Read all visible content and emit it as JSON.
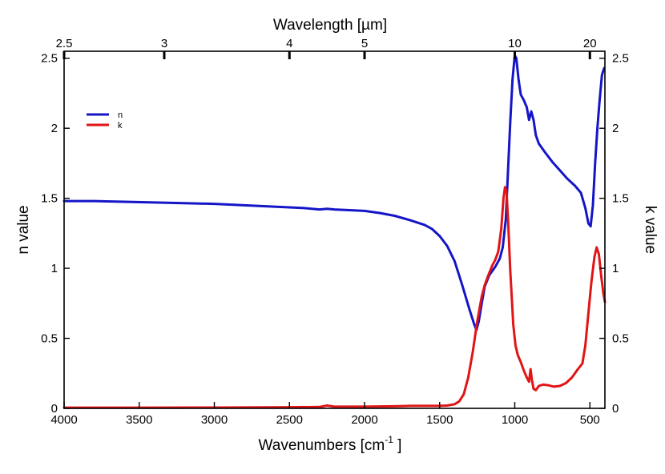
{
  "chart_data": {
    "type": "line",
    "title": "",
    "top_axis": {
      "label": "Wavelength [µm]",
      "ticks": [
        {
          "value": 2.5,
          "label": "2.5"
        },
        {
          "value": 3,
          "label": "3"
        },
        {
          "value": 4,
          "label": "4"
        },
        {
          "value": 5,
          "label": "5"
        },
        {
          "value": 10,
          "label": "10"
        },
        {
          "value": 20,
          "label": "20"
        }
      ]
    },
    "x_axis": {
      "label_main": "Wavenumbers [cm",
      "label_sup": "-1",
      "label_close": " ]",
      "range": [
        4000,
        400
      ],
      "ticks": [
        {
          "value": 4000,
          "label": "4000"
        },
        {
          "value": 3500,
          "label": "3500"
        },
        {
          "value": 3000,
          "label": "3000"
        },
        {
          "value": 2500,
          "label": "2500"
        },
        {
          "value": 2000,
          "label": "2000"
        },
        {
          "value": 1500,
          "label": "1500"
        },
        {
          "value": 1000,
          "label": "1000"
        },
        {
          "value": 500,
          "label": "500"
        }
      ]
    },
    "y_left": {
      "label": "n value",
      "range": [
        0,
        2.55
      ],
      "ticks": [
        {
          "value": 0,
          "label": "0"
        },
        {
          "value": 0.5,
          "label": "0.5"
        },
        {
          "value": 1,
          "label": "1"
        },
        {
          "value": 1.5,
          "label": "1.5"
        },
        {
          "value": 2,
          "label": "2"
        },
        {
          "value": 2.5,
          "label": "2.5"
        }
      ]
    },
    "y_right": {
      "label": "k value",
      "range": [
        0,
        2.55
      ],
      "ticks": [
        {
          "value": 0,
          "label": "0"
        },
        {
          "value": 0.5,
          "label": "0.5"
        },
        {
          "value": 1,
          "label": "1"
        },
        {
          "value": 1.5,
          "label": "1.5"
        },
        {
          "value": 2,
          "label": "2"
        },
        {
          "value": 2.5,
          "label": "2.5"
        }
      ]
    },
    "legend": {
      "placement": "top-left"
    },
    "series": [
      {
        "name": "n",
        "color": "#1515c8",
        "points": [
          [
            4000,
            1.48
          ],
          [
            3800,
            1.48
          ],
          [
            3600,
            1.475
          ],
          [
            3400,
            1.47
          ],
          [
            3200,
            1.465
          ],
          [
            3000,
            1.46
          ],
          [
            2800,
            1.45
          ],
          [
            2600,
            1.44
          ],
          [
            2400,
            1.43
          ],
          [
            2300,
            1.42
          ],
          [
            2250,
            1.425
          ],
          [
            2200,
            1.42
          ],
          [
            2000,
            1.41
          ],
          [
            1900,
            1.395
          ],
          [
            1800,
            1.375
          ],
          [
            1700,
            1.345
          ],
          [
            1600,
            1.31
          ],
          [
            1550,
            1.28
          ],
          [
            1500,
            1.23
          ],
          [
            1450,
            1.16
          ],
          [
            1400,
            1.05
          ],
          [
            1350,
            0.88
          ],
          [
            1300,
            0.7
          ],
          [
            1270,
            0.6
          ],
          [
            1255,
            0.56
          ],
          [
            1240,
            0.62
          ],
          [
            1220,
            0.75
          ],
          [
            1200,
            0.87
          ],
          [
            1170,
            0.95
          ],
          [
            1130,
            1.01
          ],
          [
            1100,
            1.07
          ],
          [
            1080,
            1.15
          ],
          [
            1060,
            1.35
          ],
          [
            1045,
            1.7
          ],
          [
            1030,
            2.05
          ],
          [
            1015,
            2.35
          ],
          [
            1000,
            2.52
          ],
          [
            990,
            2.5
          ],
          [
            975,
            2.35
          ],
          [
            960,
            2.24
          ],
          [
            940,
            2.2
          ],
          [
            920,
            2.15
          ],
          [
            905,
            2.06
          ],
          [
            890,
            2.12
          ],
          [
            875,
            2.06
          ],
          [
            860,
            1.95
          ],
          [
            840,
            1.89
          ],
          [
            800,
            1.83
          ],
          [
            750,
            1.76
          ],
          [
            700,
            1.7
          ],
          [
            650,
            1.64
          ],
          [
            600,
            1.59
          ],
          [
            560,
            1.54
          ],
          [
            530,
            1.43
          ],
          [
            510,
            1.32
          ],
          [
            495,
            1.3
          ],
          [
            480,
            1.45
          ],
          [
            465,
            1.75
          ],
          [
            450,
            2.0
          ],
          [
            435,
            2.2
          ],
          [
            420,
            2.38
          ],
          [
            405,
            2.43
          ]
        ]
      },
      {
        "name": "k",
        "color": "#e01515",
        "points": [
          [
            4000,
            0.005
          ],
          [
            3500,
            0.005
          ],
          [
            3000,
            0.006
          ],
          [
            2500,
            0.008
          ],
          [
            2300,
            0.01
          ],
          [
            2250,
            0.02
          ],
          [
            2200,
            0.012
          ],
          [
            2000,
            0.012
          ],
          [
            1800,
            0.015
          ],
          [
            1700,
            0.018
          ],
          [
            1600,
            0.018
          ],
          [
            1500,
            0.018
          ],
          [
            1450,
            0.02
          ],
          [
            1400,
            0.03
          ],
          [
            1370,
            0.05
          ],
          [
            1340,
            0.1
          ],
          [
            1310,
            0.22
          ],
          [
            1280,
            0.4
          ],
          [
            1250,
            0.62
          ],
          [
            1220,
            0.8
          ],
          [
            1200,
            0.88
          ],
          [
            1180,
            0.94
          ],
          [
            1150,
            1.02
          ],
          [
            1130,
            1.06
          ],
          [
            1110,
            1.12
          ],
          [
            1090,
            1.28
          ],
          [
            1075,
            1.5
          ],
          [
            1065,
            1.58
          ],
          [
            1055,
            1.55
          ],
          [
            1045,
            1.35
          ],
          [
            1030,
            0.98
          ],
          [
            1010,
            0.6
          ],
          [
            995,
            0.45
          ],
          [
            980,
            0.38
          ],
          [
            960,
            0.33
          ],
          [
            940,
            0.27
          ],
          [
            920,
            0.22
          ],
          [
            905,
            0.19
          ],
          [
            895,
            0.28
          ],
          [
            887,
            0.21
          ],
          [
            875,
            0.14
          ],
          [
            860,
            0.13
          ],
          [
            840,
            0.16
          ],
          [
            810,
            0.17
          ],
          [
            780,
            0.165
          ],
          [
            740,
            0.155
          ],
          [
            700,
            0.16
          ],
          [
            660,
            0.18
          ],
          [
            620,
            0.22
          ],
          [
            580,
            0.28
          ],
          [
            550,
            0.32
          ],
          [
            530,
            0.45
          ],
          [
            510,
            0.68
          ],
          [
            490,
            0.9
          ],
          [
            470,
            1.08
          ],
          [
            455,
            1.15
          ],
          [
            440,
            1.1
          ],
          [
            425,
            0.95
          ],
          [
            410,
            0.82
          ],
          [
            400,
            0.76
          ]
        ]
      }
    ]
  }
}
